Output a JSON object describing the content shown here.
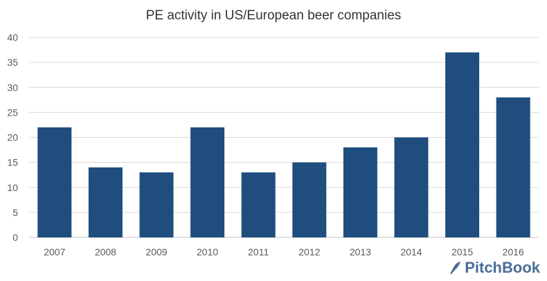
{
  "chart_data": {
    "type": "bar",
    "title": "PE activity in US/European beer companies",
    "categories": [
      "2007",
      "2008",
      "2009",
      "2010",
      "2011",
      "2012",
      "2013",
      "2014",
      "2015",
      "2016"
    ],
    "values": [
      22,
      14,
      13,
      22,
      13,
      15,
      18,
      20,
      37,
      28
    ],
    "xlabel": "",
    "ylabel": "",
    "ylim": [
      0,
      40
    ],
    "yticks": [
      0,
      5,
      10,
      15,
      20,
      25,
      30,
      35,
      40
    ],
    "grid": true,
    "bar_color": "#1f4e7e"
  },
  "branding": {
    "logo_text": "PitchBook"
  }
}
